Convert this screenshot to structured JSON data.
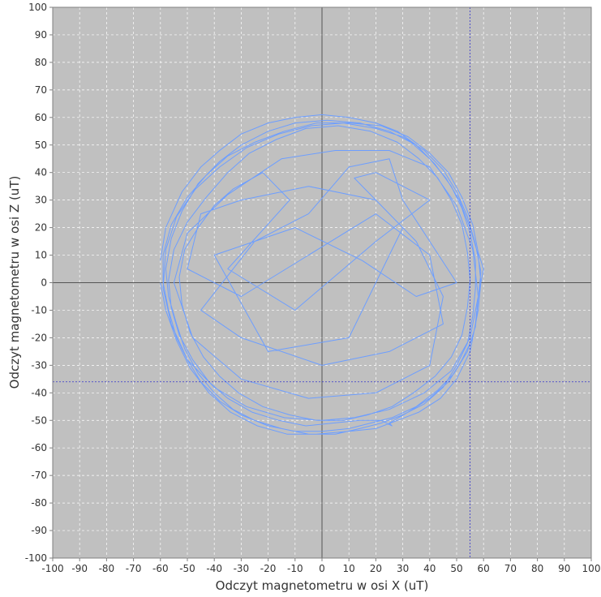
{
  "chart_data": {
    "type": "line",
    "title": "",
    "xlabel": "Odczyt magnetometru w osi X (uT)",
    "ylabel": "Odczyt magnetometru w osi Z (uT)",
    "xlim": [
      -100,
      100
    ],
    "ylim": [
      -100,
      100
    ],
    "x_ticks": [
      -100,
      -90,
      -80,
      -70,
      -60,
      -50,
      -40,
      -30,
      -20,
      -10,
      0,
      10,
      20,
      30,
      40,
      50,
      60,
      70,
      80,
      90,
      100
    ],
    "y_ticks": [
      -100,
      -90,
      -80,
      -70,
      -60,
      -50,
      -40,
      -30,
      -20,
      -10,
      0,
      10,
      20,
      30,
      40,
      50,
      60,
      70,
      80,
      90,
      100
    ],
    "grid": true,
    "legend": "none",
    "crosshair": {
      "x": 55,
      "y": -36
    },
    "colors": {
      "plot_background": "#c0c0c0",
      "series": "#6d9eff",
      "crosshair": "#3333cc",
      "zero_lines": "#555555",
      "grid": "#ffffff"
    },
    "series": [
      {
        "values": [
          [
            -60,
            8
          ],
          [
            -58,
            20
          ],
          [
            -52,
            33
          ],
          [
            -45,
            42
          ],
          [
            -38,
            48
          ],
          [
            -30,
            54
          ],
          [
            -20,
            58
          ],
          [
            -10,
            60
          ],
          [
            0,
            61
          ],
          [
            10,
            60
          ],
          [
            20,
            58
          ],
          [
            28,
            55
          ],
          [
            35,
            50
          ],
          [
            42,
            43
          ],
          [
            48,
            35
          ],
          [
            52,
            27
          ],
          [
            55,
            18
          ],
          [
            57,
            8
          ],
          [
            57,
            -2
          ],
          [
            56,
            -12
          ],
          [
            54,
            -22
          ],
          [
            50,
            -30
          ],
          [
            45,
            -38
          ],
          [
            38,
            -44
          ],
          [
            30,
            -48
          ],
          [
            22,
            -51
          ],
          [
            14,
            -53
          ],
          [
            5,
            -55
          ],
          [
            -5,
            -55
          ],
          [
            -15,
            -53
          ],
          [
            -25,
            -50
          ],
          [
            -33,
            -46
          ],
          [
            -40,
            -40
          ],
          [
            -46,
            -33
          ],
          [
            -51,
            -24
          ],
          [
            -54,
            -15
          ],
          [
            -57,
            -5
          ],
          [
            -58,
            5
          ],
          [
            -56,
            16
          ],
          [
            -52,
            26
          ],
          [
            -46,
            36
          ],
          [
            -38,
            44
          ],
          [
            -30,
            50
          ],
          [
            -20,
            55
          ],
          [
            -10,
            58
          ],
          [
            2,
            59
          ],
          [
            14,
            58
          ],
          [
            25,
            55
          ],
          [
            33,
            51
          ],
          [
            40,
            45
          ],
          [
            46,
            38
          ],
          [
            51,
            30
          ],
          [
            55,
            20
          ],
          [
            58,
            10
          ],
          [
            59,
            0
          ],
          [
            58,
            -10
          ],
          [
            56,
            -20
          ],
          [
            52,
            -28
          ],
          [
            47,
            -36
          ],
          [
            40,
            -42
          ],
          [
            32,
            -47
          ],
          [
            25,
            -51
          ],
          [
            26,
            -52
          ],
          [
            22,
            -50
          ],
          [
            14,
            -50
          ],
          [
            4,
            -51
          ],
          [
            -6,
            -52
          ],
          [
            -16,
            -50
          ],
          [
            -26,
            -47
          ],
          [
            -35,
            -42
          ],
          [
            -42,
            -36
          ],
          [
            -48,
            -28
          ],
          [
            -53,
            -19
          ],
          [
            -56,
            -9
          ],
          [
            -57,
            1
          ],
          [
            -55,
            12
          ],
          [
            -50,
            22
          ],
          [
            -43,
            31
          ],
          [
            -35,
            40
          ],
          [
            -27,
            47
          ],
          [
            -17,
            52
          ],
          [
            -6,
            56
          ],
          [
            6,
            57
          ],
          [
            18,
            55
          ],
          [
            28,
            51
          ],
          [
            36,
            45
          ],
          [
            43,
            38
          ],
          [
            48,
            30
          ],
          [
            52,
            21
          ],
          [
            54,
            11
          ],
          [
            55,
            1
          ],
          [
            54,
            -9
          ],
          [
            52,
            -19
          ],
          [
            48,
            -27
          ],
          [
            42,
            -34
          ],
          [
            34,
            -40
          ],
          [
            26,
            -45
          ],
          [
            17,
            -48
          ],
          [
            8,
            -50
          ],
          [
            -2,
            -50
          ],
          [
            -12,
            -48
          ],
          [
            -22,
            -45
          ],
          [
            -31,
            -40
          ],
          [
            -38,
            -34
          ],
          [
            -44,
            -27
          ],
          [
            -49,
            -18
          ],
          [
            -52,
            -8
          ],
          [
            -53,
            2
          ],
          [
            -51,
            12
          ],
          [
            -46,
            20
          ],
          [
            -40,
            28
          ],
          [
            -33,
            34
          ],
          [
            -22,
            40
          ],
          [
            -12,
            30
          ],
          [
            -35,
            5
          ],
          [
            -10,
            -10
          ],
          [
            20,
            15
          ],
          [
            40,
            30
          ],
          [
            20,
            40
          ],
          [
            12,
            38
          ],
          [
            30,
            20
          ],
          [
            10,
            -20
          ],
          [
            -20,
            -25
          ],
          [
            -40,
            10
          ],
          [
            -10,
            20
          ],
          [
            15,
            8
          ],
          [
            35,
            -5
          ],
          [
            50,
            0
          ],
          [
            30,
            30
          ],
          [
            25,
            45
          ],
          [
            10,
            42
          ],
          [
            -5,
            25
          ],
          [
            -25,
            15
          ],
          [
            -45,
            -10
          ],
          [
            -30,
            -20
          ],
          [
            0,
            -30
          ],
          [
            25,
            -25
          ],
          [
            45,
            -15
          ],
          [
            40,
            10
          ],
          [
            20,
            25
          ],
          [
            -5,
            10
          ],
          [
            -30,
            -5
          ],
          [
            -50,
            5
          ],
          [
            -45,
            25
          ],
          [
            -30,
            30
          ],
          [
            -5,
            35
          ],
          [
            20,
            30
          ],
          [
            35,
            15
          ],
          [
            45,
            -5
          ],
          [
            40,
            -30
          ],
          [
            20,
            -40
          ],
          [
            -5,
            -42
          ],
          [
            -30,
            -35
          ],
          [
            -48,
            -20
          ],
          [
            -55,
            0
          ],
          [
            -50,
            18
          ],
          [
            -35,
            32
          ],
          [
            -15,
            45
          ],
          [
            5,
            48
          ],
          [
            25,
            48
          ],
          [
            40,
            42
          ],
          [
            50,
            28
          ],
          [
            56,
            12
          ],
          [
            58,
            -5
          ],
          [
            55,
            -20
          ],
          [
            48,
            -32
          ],
          [
            38,
            -40
          ],
          [
            25,
            -46
          ],
          [
            12,
            -49
          ],
          [
            0,
            -50
          ],
          [
            -14,
            -49
          ],
          [
            -28,
            -45
          ],
          [
            -40,
            -38
          ],
          [
            -50,
            -28
          ],
          [
            -56,
            -15
          ],
          [
            -59,
            -2
          ],
          [
            -58,
            12
          ],
          [
            -54,
            24
          ],
          [
            -47,
            34
          ],
          [
            -38,
            42
          ],
          [
            -28,
            49
          ],
          [
            -16,
            54
          ],
          [
            -4,
            57
          ],
          [
            8,
            58
          ],
          [
            20,
            56
          ],
          [
            30,
            53
          ],
          [
            38,
            48
          ],
          [
            45,
            41
          ],
          [
            50,
            33
          ],
          [
            54,
            24
          ],
          [
            57,
            14
          ],
          [
            59,
            4
          ],
          [
            58,
            -6
          ],
          [
            57,
            -16
          ],
          [
            54,
            -25
          ],
          [
            49,
            -33
          ],
          [
            43,
            -39
          ],
          [
            35,
            -45
          ],
          [
            26,
            -49
          ],
          [
            18,
            -51
          ],
          [
            10,
            -53
          ],
          [
            0,
            -54
          ],
          [
            -10,
            -54
          ],
          [
            -20,
            -52
          ],
          [
            -30,
            -48
          ],
          [
            -38,
            -43
          ],
          [
            -45,
            -36
          ],
          [
            -50,
            -28
          ],
          [
            -54,
            -20
          ],
          [
            -57,
            -10
          ],
          [
            -59,
            0
          ],
          [
            -59,
            10
          ],
          [
            -56,
            21
          ],
          [
            -50,
            31
          ],
          [
            -43,
            39
          ],
          [
            -35,
            46
          ],
          [
            -25,
            51
          ],
          [
            -14,
            55
          ],
          [
            -2,
            58
          ],
          [
            10,
            58
          ],
          [
            22,
            57
          ],
          [
            32,
            53
          ],
          [
            40,
            47
          ],
          [
            47,
            40
          ],
          [
            52,
            31
          ],
          [
            56,
            21
          ],
          [
            58,
            11
          ],
          [
            60,
            5
          ],
          [
            58,
            -5
          ],
          [
            57,
            -15
          ],
          [
            55,
            -25
          ],
          [
            50,
            -35
          ],
          [
            44,
            -42
          ],
          [
            36,
            -47
          ],
          [
            28,
            -50
          ],
          [
            20,
            -53
          ],
          [
            10,
            -54
          ],
          [
            -2,
            -55
          ],
          [
            -13,
            -55
          ],
          [
            -24,
            -52
          ],
          [
            -34,
            -47
          ],
          [
            -42,
            -40
          ],
          [
            -49,
            -31
          ],
          [
            -54,
            -21
          ],
          [
            -58,
            -10
          ],
          [
            -60,
            0
          ]
        ]
      }
    ]
  }
}
